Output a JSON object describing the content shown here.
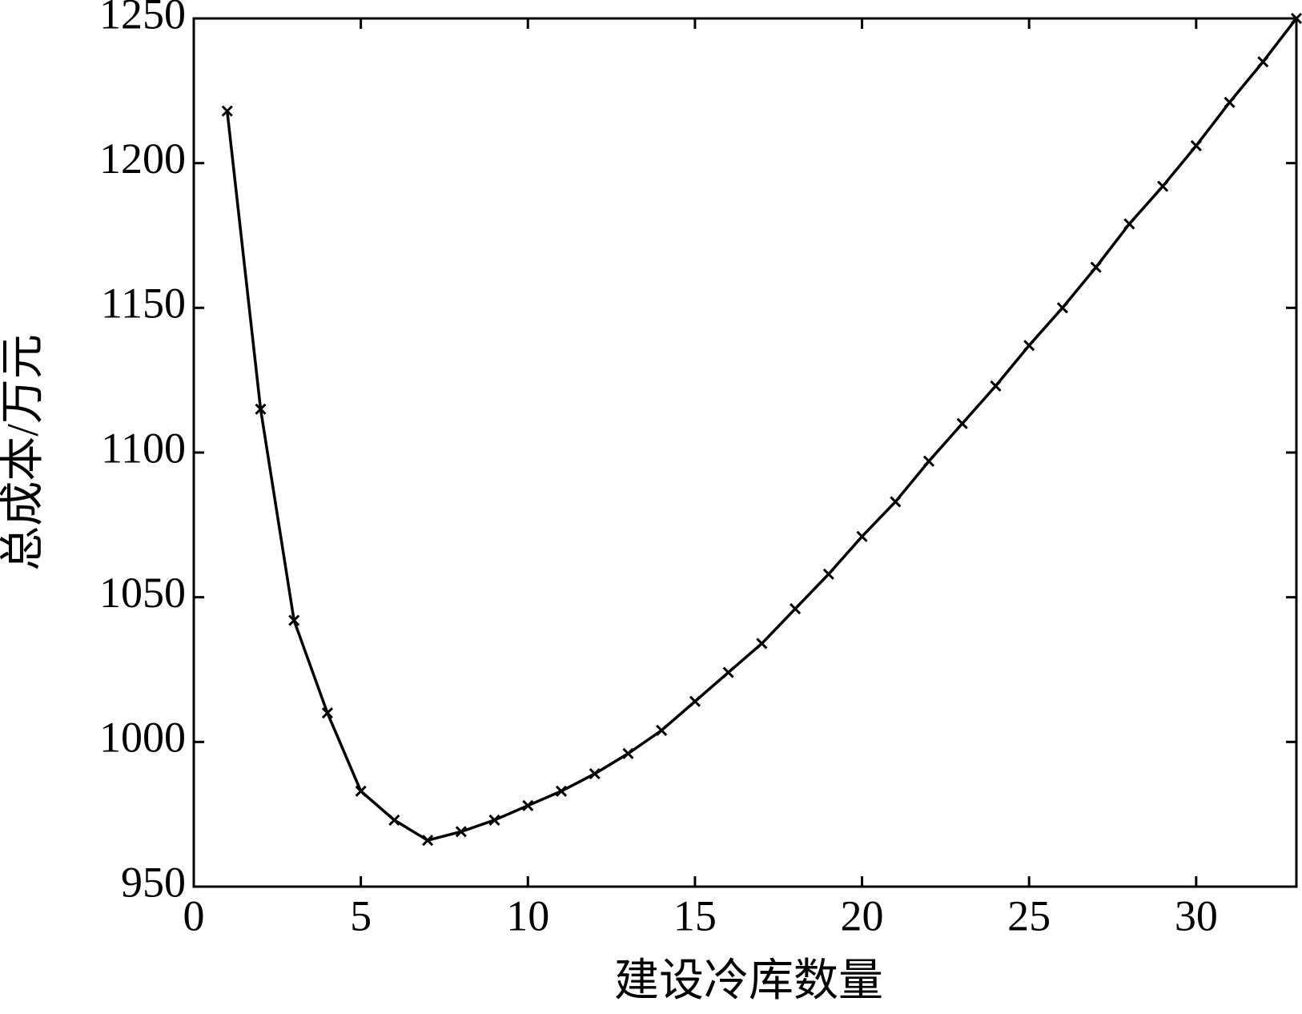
{
  "chart_data": {
    "type": "line",
    "xlabel": "建设冷库数量",
    "ylabel": "总成本/万元",
    "x": [
      1,
      2,
      3,
      4,
      5,
      6,
      7,
      8,
      9,
      10,
      11,
      12,
      13,
      14,
      15,
      16,
      17,
      18,
      19,
      20,
      21,
      22,
      23,
      24,
      25,
      26,
      27,
      28,
      29,
      30,
      31,
      32,
      33
    ],
    "series": [
      {
        "color": "#000000",
        "marker": "x",
        "values": [
          1218,
          1115,
          1042,
          1010,
          983,
          973,
          966,
          969,
          973,
          978,
          983,
          989,
          996,
          1004,
          1014,
          1024,
          1034,
          1046,
          1058,
          1071,
          1083,
          1097,
          1110,
          1123,
          1137,
          1150,
          1164,
          1179,
          1192,
          1206,
          1221,
          1235,
          1250
        ]
      }
    ],
    "xlim": [
      0,
      33
    ],
    "xticks": [
      0,
      5,
      10,
      15,
      20,
      25,
      30
    ],
    "ylim": [
      950,
      1250
    ],
    "yticks": [
      950,
      1000,
      1050,
      1100,
      1150,
      1200,
      1250
    ],
    "grid": false
  }
}
